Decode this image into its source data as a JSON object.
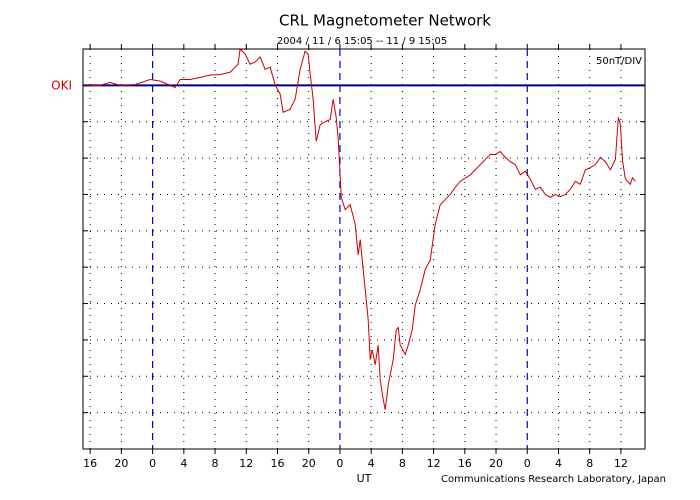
{
  "chart_data": {
    "type": "line",
    "title": "CRL Magnetometer Network",
    "subtitle": "2004 / 11 / 6   15:05 -- 11 / 9   15:05",
    "scale_label": "50nT/DIV",
    "station": "OKI",
    "xlabel": "UT",
    "credit": "Communications Research Laboratory, Japan",
    "xlim": [
      15.083,
      87.083
    ],
    "ylim": [
      -500,
      50
    ],
    "xticks": [
      16,
      20,
      {
        "value": 24,
        "label": "0"
      },
      {
        "value": 28,
        "label": "4"
      },
      {
        "value": 32,
        "label": "8"
      },
      {
        "value": 36,
        "label": "12"
      },
      {
        "value": 40,
        "label": "16"
      },
      {
        "value": 44,
        "label": "20"
      },
      {
        "value": 48,
        "label": "0"
      },
      {
        "value": 52,
        "label": "4"
      },
      {
        "value": 56,
        "label": "8"
      },
      {
        "value": 60,
        "label": "12"
      },
      {
        "value": 64,
        "label": "16"
      },
      {
        "value": 68,
        "label": "20"
      },
      {
        "value": 72,
        "label": "0"
      },
      {
        "value": 76,
        "label": "4"
      },
      {
        "value": 80,
        "label": "8"
      },
      {
        "value": 84,
        "label": "12"
      }
    ],
    "yticks": [
      -450,
      -400,
      -350,
      -300,
      -250,
      -200,
      -150,
      -100,
      -50,
      0
    ],
    "day_lines": [
      24,
      48,
      72
    ],
    "baseline": 0,
    "baseline_color": "#00008b",
    "day_line_color": "#0000cc",
    "grid": true,
    "series": [
      {
        "color": "#cc0000",
        "x": [
          15.34,
          17.26,
          18.54,
          19.83,
          21.75,
          23.68,
          24.95,
          26.24,
          26.88,
          27.52,
          28.8,
          30.08,
          31.37,
          32.65,
          33.93,
          34.95,
          35.21,
          35.85,
          36.49,
          37.13,
          37.78,
          38.42,
          39.06,
          39.7,
          40.34,
          40.72,
          41.62,
          42.26,
          42.9,
          43.54,
          43.93,
          44.19,
          44.57,
          44.96,
          45.47,
          46.11,
          46.75,
          47.13,
          47.52,
          47.78,
          48.17,
          48.67,
          49.31,
          49.95,
          50.34,
          50.6,
          50.85,
          51.24,
          51.62,
          51.88,
          52.14,
          52.52,
          52.9,
          53.16,
          53.55,
          53.8,
          54.19,
          54.44,
          54.83,
          55.21,
          55.47,
          55.72,
          56.36,
          56.75,
          57.26,
          57.65,
          58.29,
          58.93,
          59.57,
          60.21,
          60.85,
          61.49,
          62.13,
          62.78,
          63.42,
          64.7,
          65.98,
          67.26,
          67.9,
          68.54,
          69.19,
          69.83,
          70.47,
          71.11,
          71.75,
          72.39,
          73.03,
          73.67,
          74.31,
          74.96,
          75.6,
          76.24,
          76.88,
          77.52,
          78.16,
          78.8,
          79.44,
          80.08,
          80.72,
          81.37,
          82.01,
          82.65,
          83.29,
          83.67,
          83.93,
          84.19,
          84.57,
          85.21,
          85.47,
          85.85
        ],
        "values": [
          -1,
          0,
          4,
          0,
          1,
          8,
          6,
          0,
          -3,
          8,
          8,
          11,
          14,
          15,
          18,
          29,
          50,
          43,
          29,
          32,
          39,
          22,
          25,
          1,
          -12,
          -37,
          -33,
          -19,
          22,
          47,
          43,
          15,
          -19,
          -77,
          -54,
          -50,
          -47,
          -19,
          -44,
          -74,
          -154,
          -171,
          -164,
          -191,
          -233,
          -212,
          -240,
          -281,
          -322,
          -377,
          -364,
          -384,
          -357,
          -405,
          -432,
          -446,
          -412,
          -398,
          -377,
          -336,
          -333,
          -357,
          -370,
          -357,
          -336,
          -302,
          -281,
          -253,
          -240,
          -191,
          -164,
          -157,
          -150,
          -140,
          -132,
          -123,
          -109,
          -95,
          -95,
          -91,
          -99,
          -105,
          -109,
          -123,
          -118,
          -129,
          -143,
          -140,
          -150,
          -154,
          -150,
          -153,
          -150,
          -143,
          -132,
          -136,
          -116,
          -113,
          -109,
          -99,
          -105,
          -116,
          -102,
          -44,
          -54,
          -102,
          -129,
          -136,
          -127,
          -132
        ]
      }
    ]
  }
}
